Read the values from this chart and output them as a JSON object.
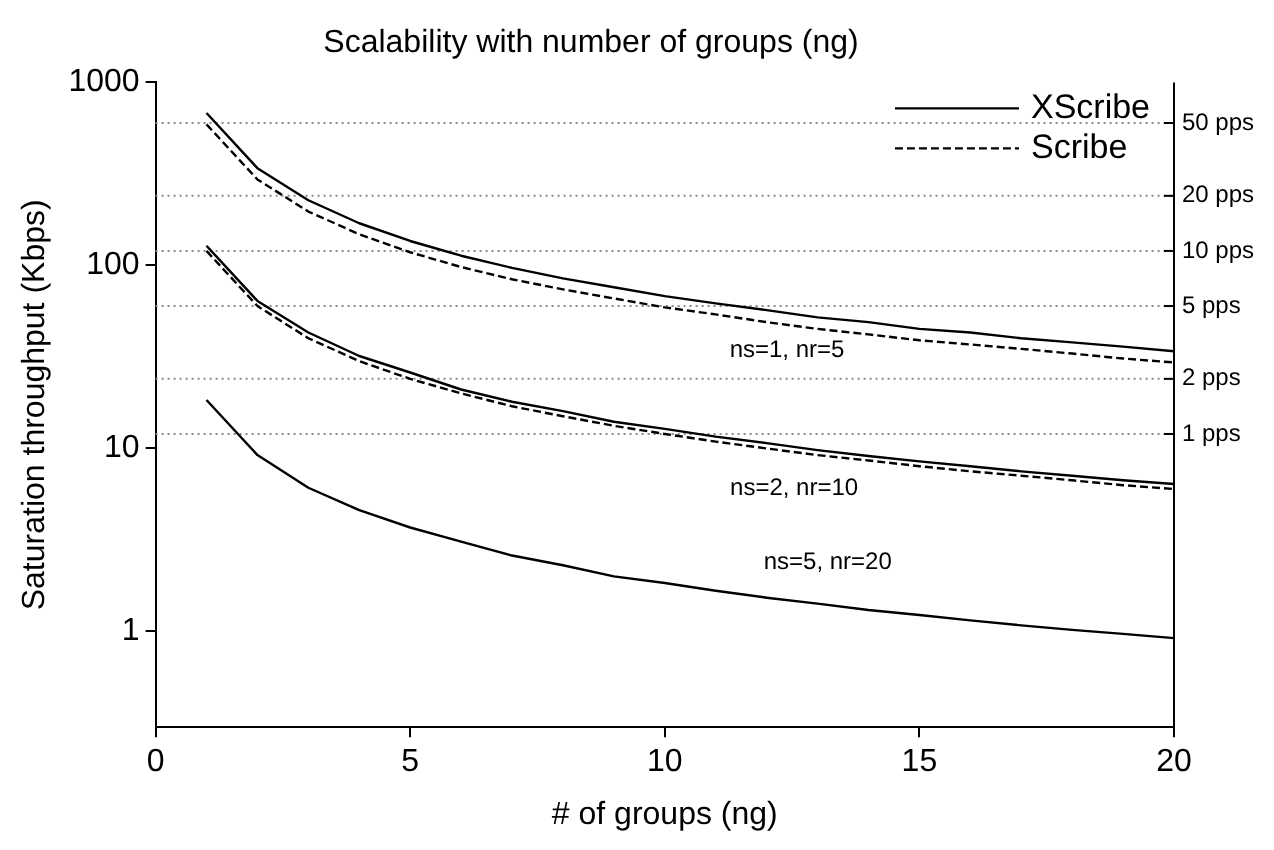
{
  "chart_data": {
    "type": "line",
    "title": "Scalability with number of groups (ng)",
    "xlabel": "# of groups (ng)",
    "ylabel": "Saturation throughput (Kbps)",
    "x": [
      1,
      2,
      3,
      4,
      5,
      6,
      7,
      8,
      9,
      10,
      11,
      12,
      13,
      14,
      15,
      16,
      17,
      18,
      19,
      20
    ],
    "series": [
      {
        "name": "XScribe",
        "color": "#000000",
        "line_style": "solid",
        "values": [
          680,
          340,
          227,
          170,
          136,
          113,
          97,
          85,
          76,
          68,
          62,
          57,
          52,
          49,
          45,
          43,
          40,
          38,
          36,
          34
        ]
      },
      {
        "name": "Scribe",
        "color": "#000000",
        "line_style": "dashed",
        "values": [
          590,
          295,
          197,
          148,
          118,
          98,
          84,
          74,
          66,
          59,
          54,
          49,
          45,
          42,
          39,
          37,
          35,
          33,
          31,
          29.5
        ]
      },
      {
        "color": "#000000",
        "line_style": "solid",
        "values": [
          128,
          64,
          43,
          32,
          26,
          21,
          18,
          16,
          14,
          12.8,
          11.6,
          10.7,
          9.8,
          9.1,
          8.5,
          8,
          7.5,
          7.1,
          6.7,
          6.4
        ]
      },
      {
        "color": "#000000",
        "line_style": "dashed",
        "values": [
          120,
          60,
          40,
          30,
          24,
          20,
          17,
          15,
          13.3,
          12,
          10.9,
          10,
          9.2,
          8.6,
          8,
          7.5,
          7.1,
          6.7,
          6.3,
          6
        ]
      },
      {
        "color": "#000000",
        "line_style": "solid",
        "values": [
          18.4,
          9.2,
          6.1,
          4.6,
          3.7,
          3.1,
          2.6,
          2.3,
          2.0,
          1.84,
          1.67,
          1.53,
          1.42,
          1.31,
          1.23,
          1.15,
          1.08,
          1.02,
          0.97,
          0.92
        ]
      }
    ],
    "xlim": [
      0,
      20
    ],
    "xticks": [
      0,
      5,
      10,
      15,
      20
    ],
    "log": "y",
    "ylim": [
      0.3,
      1000
    ],
    "yticks": [
      1,
      10,
      100,
      1000
    ],
    "ref_lines": [
      {
        "axis": "y",
        "value": 600,
        "label": "50 pps",
        "color": "#888888",
        "line_style": "dotted"
      },
      {
        "axis": "y",
        "value": 240,
        "label": "20 pps",
        "color": "#888888",
        "line_style": "dotted"
      },
      {
        "axis": "y",
        "value": 120,
        "label": "10 pps",
        "color": "#888888",
        "line_style": "dotted"
      },
      {
        "axis": "y",
        "value": 60,
        "label": "5 pps",
        "color": "#888888",
        "line_style": "dotted"
      },
      {
        "axis": "y",
        "value": 24,
        "label": "2 pps",
        "color": "#888888",
        "line_style": "dotted"
      },
      {
        "axis": "y",
        "value": 12,
        "label": "1 pps",
        "color": "#888888",
        "line_style": "dotted"
      }
    ],
    "legend": "top right",
    "marker": "none",
    "annotations": [
      "ns=1, nr=5",
      "ns=2, nr=10",
      "ns=5, nr=20"
    ]
  }
}
